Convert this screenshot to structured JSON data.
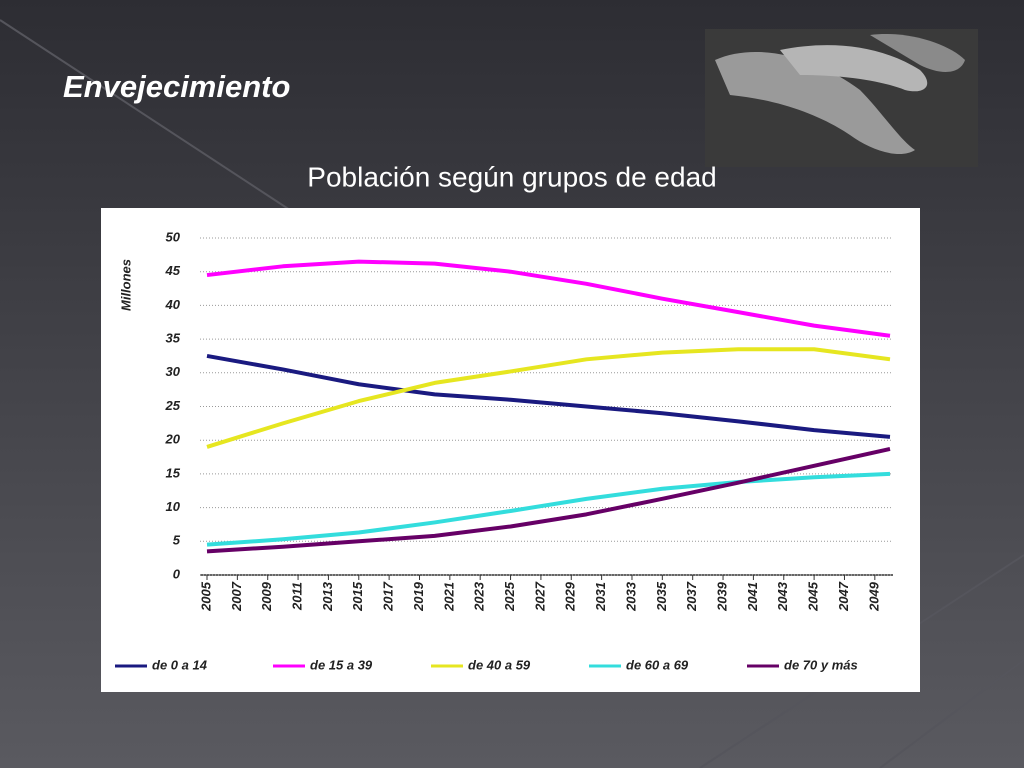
{
  "heading": "Envejecimiento",
  "chart_data": {
    "type": "line",
    "title": "Población según grupos de edad",
    "y_label": "Millones",
    "x": [
      2005,
      2010,
      2015,
      2020,
      2025,
      2030,
      2035,
      2040,
      2045,
      2050
    ],
    "xlim": [
      2005,
      2050
    ],
    "xticks": [
      2005,
      2007,
      2009,
      2011,
      2013,
      2015,
      2017,
      2019,
      2021,
      2023,
      2025,
      2027,
      2029,
      2031,
      2033,
      2035,
      2037,
      2039,
      2041,
      2043,
      2045,
      2047,
      2049
    ],
    "ylim": [
      0,
      50
    ],
    "yticks": [
      0,
      5,
      10,
      15,
      20,
      25,
      30,
      35,
      40,
      45,
      50
    ],
    "grid": true,
    "legend": "bottom",
    "series": [
      {
        "name": "de 0 a 14",
        "color": "#1a1a80",
        "values": [
          32.5,
          30.5,
          28.3,
          26.8,
          26,
          25,
          24,
          22.8,
          21.5,
          20.5
        ]
      },
      {
        "name": "de 15 a 39",
        "color": "#ff00ff",
        "values": [
          44.5,
          45.8,
          46.5,
          46.2,
          45,
          43.2,
          41,
          39,
          37,
          35.5
        ]
      },
      {
        "name": "de 40 a 59",
        "color": "#e6e620",
        "values": [
          19,
          22.5,
          25.8,
          28.5,
          30.2,
          32,
          33,
          33.5,
          33.5,
          32
        ]
      },
      {
        "name": "de 60 a 69",
        "color": "#33dddd",
        "values": [
          4.5,
          5.3,
          6.3,
          7.8,
          9.5,
          11.3,
          12.8,
          13.8,
          14.5,
          15
        ]
      },
      {
        "name": "de 70 y más",
        "color": "#660066",
        "values": [
          3.5,
          4.2,
          5,
          5.8,
          7.2,
          9,
          11.3,
          13.7,
          16.2,
          18.7
        ]
      }
    ]
  }
}
